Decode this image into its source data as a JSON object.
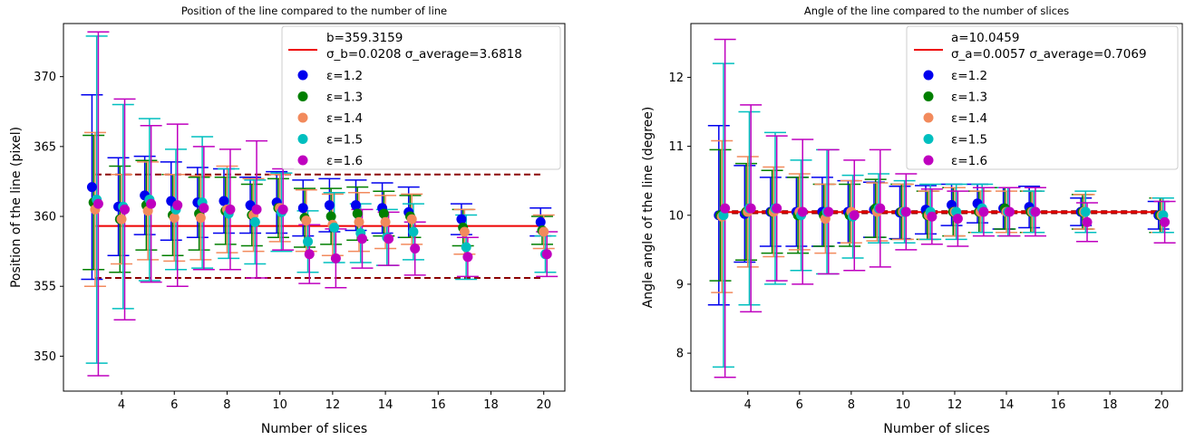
{
  "chart_data": [
    {
      "type": "scatter",
      "title": "Position of the line compared to the number of line",
      "xlabel": "Number of slices",
      "ylabel": "Position of the line (pixel)",
      "xlim": [
        1.8,
        20.8
      ],
      "ylim": [
        347.5,
        373.8
      ],
      "xticks": [
        4,
        6,
        8,
        10,
        12,
        14,
        16,
        18,
        20
      ],
      "yticks": [
        350,
        355,
        360,
        365,
        370
      ],
      "x": [
        3,
        4,
        5,
        6,
        7,
        8,
        9,
        10,
        11,
        12,
        13,
        14,
        15,
        17,
        20
      ],
      "fit": {
        "label": "b=359.3159",
        "stats_label": "σ_b=0.0208 σ_average=3.6818",
        "value": 359.3159,
        "band": [
          355.6,
          363.0
        ]
      },
      "series": [
        {
          "name": "ε=1.2",
          "color": "#0000ee",
          "values": [
            362.1,
            360.7,
            361.5,
            361.1,
            361.0,
            361.1,
            360.8,
            361.0,
            360.6,
            360.8,
            360.8,
            360.6,
            360.3,
            359.8,
            359.6
          ],
          "errors": [
            6.6,
            3.5,
            2.8,
            2.8,
            2.5,
            2.3,
            2.0,
            2.2,
            2.0,
            1.9,
            1.8,
            1.8,
            1.8,
            1.1,
            1.0
          ]
        },
        {
          "name": "ε=1.3",
          "color": "#007f00",
          "values": [
            361.0,
            359.8,
            360.8,
            360.1,
            360.2,
            360.4,
            360.1,
            360.6,
            359.9,
            360.0,
            360.2,
            360.2,
            360.0,
            359.2,
            359.0
          ],
          "errors": [
            4.8,
            3.8,
            3.2,
            2.9,
            2.6,
            2.4,
            2.2,
            2.1,
            2.1,
            2.0,
            1.9,
            1.6,
            1.5,
            1.3,
            1.0
          ]
        },
        {
          "name": "ε=1.4",
          "color": "#f28a5c",
          "values": [
            360.5,
            359.8,
            360.4,
            359.9,
            359.9,
            360.5,
            360.1,
            360.6,
            359.7,
            359.4,
            359.6,
            359.6,
            359.8,
            358.9,
            358.9
          ],
          "errors": [
            5.5,
            3.2,
            3.5,
            3.1,
            3.0,
            3.1,
            2.6,
            2.4,
            2.2,
            2.2,
            2.1,
            1.9,
            1.8,
            1.6,
            1.2
          ]
        },
        {
          "name": "ε=1.5",
          "color": "#00bfbf",
          "values": [
            361.2,
            360.7,
            361.2,
            360.5,
            361.0,
            360.2,
            359.6,
            360.3,
            358.2,
            359.2,
            358.8,
            358.5,
            358.9,
            357.8,
            357.3
          ],
          "errors": [
            11.7,
            7.3,
            5.8,
            4.3,
            4.7,
            3.2,
            3.0,
            2.8,
            2.2,
            2.5,
            2.1,
            2.0,
            2.0,
            2.3,
            1.3
          ]
        },
        {
          "name": "ε=1.6",
          "color": "#bf00bf",
          "values": [
            360.9,
            360.5,
            360.9,
            360.8,
            360.6,
            360.5,
            360.5,
            360.5,
            357.3,
            357.0,
            358.4,
            358.4,
            357.7,
            357.1,
            357.3
          ],
          "errors": [
            12.3,
            7.9,
            5.6,
            5.8,
            4.4,
            4.3,
            4.9,
            2.9,
            2.1,
            2.1,
            2.1,
            1.9,
            1.9,
            1.4,
            1.6
          ]
        }
      ]
    },
    {
      "type": "scatter",
      "title": "Angle of the line compared to the number of slices",
      "xlabel": "Number of slices",
      "ylabel": "Angle angle of the line (degree)",
      "xlim": [
        1.8,
        20.8
      ],
      "ylim": [
        7.45,
        12.78
      ],
      "xticks": [
        4,
        6,
        8,
        10,
        12,
        14,
        16,
        18,
        20
      ],
      "yticks": [
        8,
        9,
        10,
        11,
        12
      ],
      "x": [
        3,
        4,
        5,
        6,
        7,
        8,
        9,
        10,
        11,
        12,
        13,
        14,
        15,
        17,
        20
      ],
      "fit": {
        "label": "a=10.0459",
        "stats_label": "σ_a=0.0057 σ_average=0.7069",
        "value": 10.0459,
        "band": [
          10.03,
          10.06
        ]
      },
      "series": [
        {
          "name": "ε=1.2",
          "color": "#0000ee",
          "values": [
            10.0,
            10.02,
            10.05,
            10.05,
            10.05,
            10.05,
            10.08,
            10.04,
            10.08,
            10.15,
            10.17,
            10.1,
            10.12,
            10.05,
            10.0
          ],
          "errors": [
            1.3,
            0.7,
            0.5,
            0.5,
            0.5,
            0.45,
            0.4,
            0.38,
            0.35,
            0.3,
            0.28,
            0.3,
            0.3,
            0.2,
            0.2
          ]
        },
        {
          "name": "ε=1.3",
          "color": "#007f00",
          "values": [
            10.0,
            10.05,
            10.05,
            10.0,
            10.0,
            10.0,
            10.1,
            10.05,
            10.0,
            10.05,
            10.05,
            10.1,
            10.05,
            10.05,
            10.0
          ],
          "errors": [
            0.95,
            0.7,
            0.6,
            0.55,
            0.45,
            0.45,
            0.42,
            0.4,
            0.35,
            0.35,
            0.3,
            0.3,
            0.3,
            0.25,
            0.25
          ]
        },
        {
          "name": "ε=1.4",
          "color": "#f28a5c",
          "values": [
            9.98,
            10.05,
            10.05,
            10.05,
            9.95,
            10.05,
            10.05,
            10.05,
            10.0,
            10.05,
            10.05,
            10.05,
            10.05,
            10.05,
            10.0
          ],
          "errors": [
            1.1,
            0.8,
            0.65,
            0.55,
            0.5,
            0.45,
            0.42,
            0.4,
            0.35,
            0.35,
            0.3,
            0.3,
            0.3,
            0.25,
            0.25
          ]
        },
        {
          "name": "ε=1.5",
          "color": "#00bfbf",
          "values": [
            10.0,
            10.1,
            10.1,
            10.0,
            10.05,
            9.98,
            10.1,
            10.05,
            10.05,
            10.05,
            10.1,
            10.05,
            10.05,
            10.05,
            10.0
          ],
          "errors": [
            2.2,
            1.4,
            1.1,
            0.8,
            0.9,
            0.6,
            0.5,
            0.45,
            0.4,
            0.4,
            0.35,
            0.35,
            0.3,
            0.3,
            0.25
          ]
        },
        {
          "name": "ε=1.6",
          "color": "#bf00bf",
          "values": [
            10.1,
            10.1,
            10.1,
            10.05,
            10.05,
            10.0,
            10.1,
            10.05,
            9.98,
            9.95,
            10.05,
            10.05,
            10.05,
            9.9,
            9.9
          ],
          "errors": [
            2.45,
            1.5,
            1.05,
            1.05,
            0.9,
            0.8,
            0.85,
            0.55,
            0.4,
            0.4,
            0.35,
            0.35,
            0.35,
            0.28,
            0.3
          ]
        }
      ]
    }
  ]
}
